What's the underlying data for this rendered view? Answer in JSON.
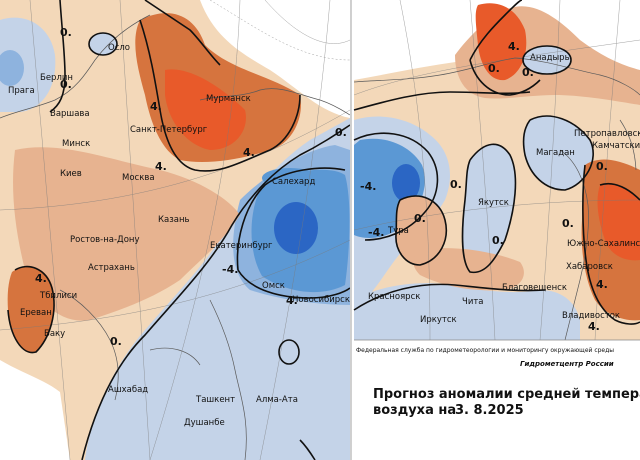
{
  "colors": {
    "strong_warm": "#e85a2a",
    "warm": "#d6743e",
    "mild_warm": "#e7b390",
    "neutral": "#f3d8b9",
    "mild_cold": "#c4d3e8",
    "cold": "#8eb3de",
    "strong_cold": "#5b98d4",
    "very_cold": "#2b66c4",
    "land_outside": "#ffffff",
    "isoline": "#111111"
  },
  "legend_note": {
    "agency": "Федеральная служба по гидрометеорологии и мониторингу окружающей среды",
    "center": "Гидрометцентр России"
  },
  "title": {
    "line1": "Прогноз аномалии средней температуры",
    "line2_prefix": "воздуха на",
    "date": "3. 8.2025"
  },
  "isolines": {
    "zero": "0.",
    "plus4": "4.",
    "minus4": "-4."
  },
  "cities_west": {
    "oslo": "Осло",
    "berlin": "Берлин",
    "praha": "Прага",
    "warszawa": "Варшава",
    "minsk": "Минск",
    "kiev": "Киев",
    "moskva": "Москва",
    "spb": "Санкт-Петербург",
    "murmansk": "Мурманск",
    "kazan": "Казань",
    "rostov": "Ростов-на-Дону",
    "astrakhan": "Астрахань",
    "tbilisi": "Тбилиси",
    "erevan": "Ереван",
    "baku": "Баку",
    "salekhard": "Салехард",
    "ekaterinburg": "Екатеринбург",
    "omsk": "Омск",
    "novosibirsk": "Новосибирск",
    "ashkhabad": "Ашхабад",
    "tashkent": "Ташкент",
    "almaata": "Алма-Ата",
    "dushanbe": "Душанбе"
  },
  "cities_east": {
    "anadyr": "Анадырь",
    "petropavlovsk": "Петропавловск",
    "kamchatsky": "Камчатский",
    "magadan": "Магадан",
    "yakutsk": "Якутск",
    "tura": "Тура",
    "krasnoyarsk": "Красноярск",
    "irkutsk": "Иркутск",
    "chita": "Чита",
    "blagoveshchensk": "Благовещенск",
    "khabarovsk": "Хабаровск",
    "yuzhno": "Южно-Сахалинск",
    "vladivostok": "Владивосток"
  }
}
